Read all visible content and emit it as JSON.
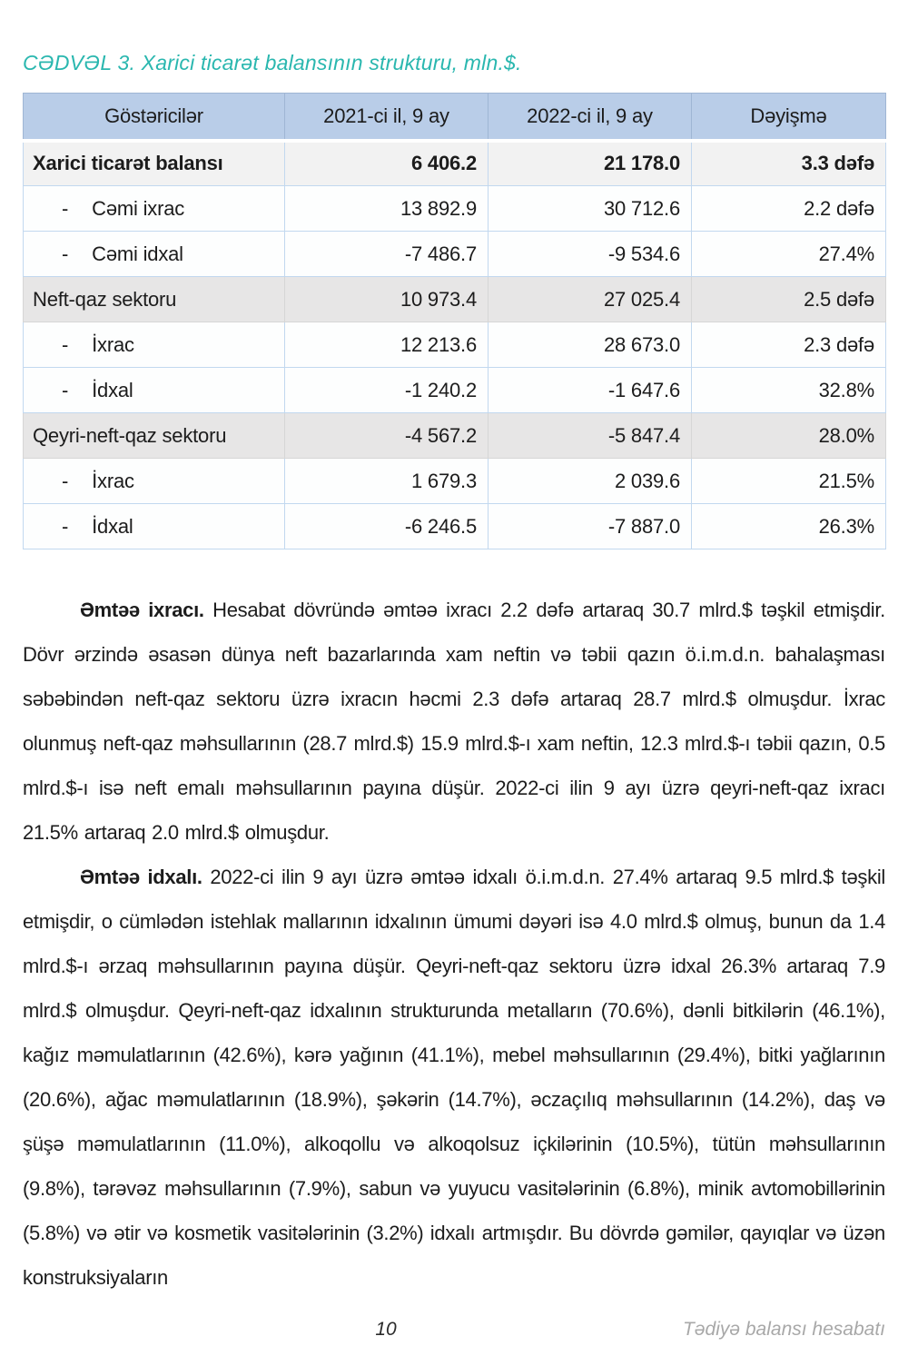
{
  "page": {
    "caption": "CƏDVƏL 3. Xarici ticarət balansının strukturu, mln.$.",
    "footer": {
      "page_number": "10",
      "report_name": "Tədiyə balansı hesabatı"
    }
  },
  "colors": {
    "caption_teal": "#2ab7af",
    "table_header_bg": "#b9cde8",
    "total_row_bg": "#f2f2f2",
    "section_row_bg": "#e7e6e6",
    "cell_border_blue": "#c2d8ef",
    "footer_gray": "#a8a8a8"
  },
  "table": {
    "sub_dash": "-",
    "headers": [
      "Göstəricilər",
      "2021-ci il, 9 ay",
      "2022-ci il, 9 ay",
      "Dəyişmə"
    ],
    "rows": [
      {
        "style": "total",
        "label": "Xarici ticarət balansı",
        "v2021": "6 406.2",
        "v2022": "21 178.0",
        "change": "3.3 dəfə"
      },
      {
        "style": "sub",
        "label": "Cəmi ixrac",
        "v2021": "13 892.9",
        "v2022": "30 712.6",
        "change": "2.2 dəfə"
      },
      {
        "style": "sub",
        "label": "Cəmi idxal",
        "v2021": "-7 486.7",
        "v2022": "-9 534.6",
        "change": "27.4%"
      },
      {
        "style": "section",
        "label": "Neft-qaz sektoru",
        "v2021": "10 973.4",
        "v2022": "27 025.4",
        "change": "2.5 dəfə"
      },
      {
        "style": "sub",
        "label": "İxrac",
        "v2021": "12 213.6",
        "v2022": "28 673.0",
        "change": "2.3 dəfə"
      },
      {
        "style": "sub",
        "label": "İdxal",
        "v2021": "-1 240.2",
        "v2022": "-1 647.6",
        "change": "32.8%"
      },
      {
        "style": "section",
        "label": "Qeyri-neft-qaz sektoru",
        "v2021": "-4 567.2",
        "v2022": "-5 847.4",
        "change": "28.0%"
      },
      {
        "style": "sub",
        "label": "İxrac",
        "v2021": "1 679.3",
        "v2022": "2 039.6",
        "change": "21.5%"
      },
      {
        "style": "sub",
        "label": "İdxal",
        "v2021": "-6 246.5",
        "v2022": "-7 887.0",
        "change": "26.3%"
      }
    ]
  },
  "paragraphs": [
    {
      "lead": "Əmtəə ixracı.",
      "body": "Hesabat dövründə əmtəə ixracı 2.2 dəfə artaraq 30.7 mlrd.$ təşkil etmişdir. Dövr ərzində əsasən dünya neft bazarlarında xam neftin və təbii qazın ö.i.m.d.n. bahalaşması səbəbindən neft-qaz sektoru üzrə ixracın həcmi 2.3 dəfə artaraq 28.7 mlrd.$ olmuşdur. İxrac olunmuş neft-qaz məhsullarının (28.7 mlrd.$) 15.9 mlrd.$-ı xam neftin, 12.3 mlrd.$-ı təbii qazın, 0.5 mlrd.$-ı isə neft emalı məhsullarının payına düşür. 2022-ci ilin 9 ayı üzrə qeyri-neft-qaz ixracı 21.5% artaraq 2.0 mlrd.$ olmuşdur."
    },
    {
      "lead": "Əmtəə idxalı.",
      "body": "2022-ci ilin 9 ayı üzrə əmtəə idxalı ö.i.m.d.n. 27.4% artaraq 9.5 mlrd.$ təşkil etmişdir, o cümlədən istehlak mallarının idxalının ümumi dəyəri isə 4.0 mlrd.$ olmuş, bunun da 1.4 mlrd.$-ı ərzaq məhsullarının payına düşür. Qeyri-neft-qaz sektoru üzrə idxal 26.3% artaraq 7.9 mlrd.$ olmuşdur. Qeyri-neft-qaz idxalının strukturunda metalların (70.6%), dənli bitkilərin (46.1%), kağız məmulatlarının (42.6%), kərə yağının (41.1%), mebel məhsullarının (29.4%), bitki yağlarının (20.6%), ağac məmulatlarının (18.9%), şəkərin (14.7%), əczaçılıq məhsullarının (14.2%), daş və şüşə məmulatlarının (11.0%), alkoqollu və alkoqolsuz içkilərinin (10.5%), tütün məhsullarının (9.8%), tərəvəz məhsullarının (7.9%), sabun və yuyucu vasitələrinin (6.8%), minik avtomobillərinin (5.8%) və ətir və kosmetik vasitələrinin (3.2%) idxalı artmışdır. Bu dövrdə gəmilər, qayıqlar və üzən konstruksiyaların"
    }
  ]
}
